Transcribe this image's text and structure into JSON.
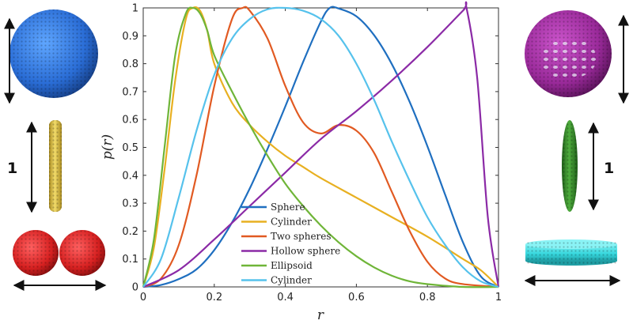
{
  "chart_data": {
    "type": "line",
    "title": "",
    "xlabel": "r",
    "ylabel": "p(r)",
    "xlim": [
      0,
      1
    ],
    "ylim": [
      0,
      1
    ],
    "xticks": [
      "0",
      "0.2",
      "0.4",
      "0.6",
      "0.8",
      "1"
    ],
    "yticks": [
      "0",
      "0.1",
      "0.2",
      "0.3",
      "0.4",
      "0.5",
      "0.6",
      "0.7",
      "0.8",
      "0.9",
      "1"
    ],
    "legend_position": "lower-center",
    "series": [
      {
        "name": "Sphere",
        "color": "#1f6fc0",
        "x": [
          0,
          0.05,
          0.1,
          0.15,
          0.2,
          0.25,
          0.3,
          0.35,
          0.4,
          0.45,
          0.5,
          0.525,
          0.55,
          0.6,
          0.65,
          0.7,
          0.75,
          0.8,
          0.85,
          0.9,
          0.95,
          1.0
        ],
        "y": [
          0,
          0.007,
          0.028,
          0.063,
          0.132,
          0.231,
          0.353,
          0.495,
          0.647,
          0.806,
          0.951,
          1.0,
          0.998,
          0.97,
          0.902,
          0.798,
          0.663,
          0.504,
          0.33,
          0.16,
          0.038,
          0
        ]
      },
      {
        "name": "Cylinder",
        "color": "#e8b021",
        "x": [
          0,
          0.03,
          0.06,
          0.09,
          0.12,
          0.14,
          0.16,
          0.18,
          0.2,
          0.25,
          0.3,
          0.35,
          0.4,
          0.45,
          0.5,
          0.6,
          0.7,
          0.8,
          0.9,
          0.95,
          1.0
        ],
        "y": [
          0,
          0.14,
          0.42,
          0.74,
          0.96,
          1.0,
          0.99,
          0.92,
          0.8,
          0.66,
          0.58,
          0.52,
          0.47,
          0.43,
          0.39,
          0.32,
          0.25,
          0.18,
          0.1,
          0.06,
          0
        ]
      },
      {
        "name": "Two spheres",
        "color": "#e15a22",
        "x": [
          0,
          0.05,
          0.1,
          0.15,
          0.2,
          0.25,
          0.28,
          0.3,
          0.35,
          0.4,
          0.45,
          0.5,
          0.55,
          0.6,
          0.65,
          0.7,
          0.75,
          0.8,
          0.85,
          0.9,
          1.0
        ],
        "y": [
          0,
          0.03,
          0.15,
          0.4,
          0.72,
          0.96,
          1.0,
          0.99,
          0.89,
          0.72,
          0.59,
          0.55,
          0.58,
          0.56,
          0.48,
          0.34,
          0.2,
          0.09,
          0.03,
          0.01,
          0
        ]
      },
      {
        "name": "Hollow sphere",
        "color": "#8b2aa6",
        "x": [
          0,
          0.1,
          0.2,
          0.3,
          0.4,
          0.5,
          0.6,
          0.7,
          0.8,
          0.9,
          0.91,
          0.94,
          0.97,
          1.0
        ],
        "y": [
          0,
          0.06,
          0.17,
          0.29,
          0.41,
          0.53,
          0.63,
          0.74,
          0.86,
          0.99,
          1.0,
          0.75,
          0.25,
          0
        ]
      },
      {
        "name": "Ellipsoid",
        "color": "#6fb538",
        "x": [
          0,
          0.03,
          0.06,
          0.09,
          0.12,
          0.14,
          0.16,
          0.18,
          0.2,
          0.25,
          0.3,
          0.35,
          0.4,
          0.45,
          0.5,
          0.55,
          0.6,
          0.65,
          0.7,
          0.75,
          0.8,
          0.9,
          1.0
        ],
        "y": [
          0,
          0.17,
          0.5,
          0.83,
          0.98,
          1.0,
          0.98,
          0.92,
          0.83,
          0.7,
          0.58,
          0.47,
          0.37,
          0.29,
          0.22,
          0.16,
          0.11,
          0.07,
          0.04,
          0.02,
          0.01,
          0,
          0
        ]
      },
      {
        "name": "Cylinder",
        "color": "#56c2ec",
        "x": [
          0,
          0.05,
          0.1,
          0.15,
          0.2,
          0.25,
          0.3,
          0.35,
          0.4,
          0.45,
          0.5,
          0.55,
          0.6,
          0.65,
          0.7,
          0.75,
          0.8,
          0.85,
          0.9,
          0.95,
          1.0
        ],
        "y": [
          0,
          0.1,
          0.32,
          0.56,
          0.76,
          0.89,
          0.96,
          0.995,
          1.0,
          0.99,
          0.96,
          0.9,
          0.8,
          0.67,
          0.52,
          0.38,
          0.25,
          0.15,
          0.07,
          0.02,
          0
        ]
      }
    ]
  },
  "scale_labels": {
    "left_cylinder": "1",
    "right_ellipsoid": "1"
  },
  "shape_colors": {
    "sphere": "#2a6dd6",
    "cylinder": "#e6c84a",
    "two_spheres": "#d62020",
    "hollow_sphere": "#9a2a9a",
    "ellipsoid": "#3a8f2e",
    "disk": "#35d6dc"
  }
}
